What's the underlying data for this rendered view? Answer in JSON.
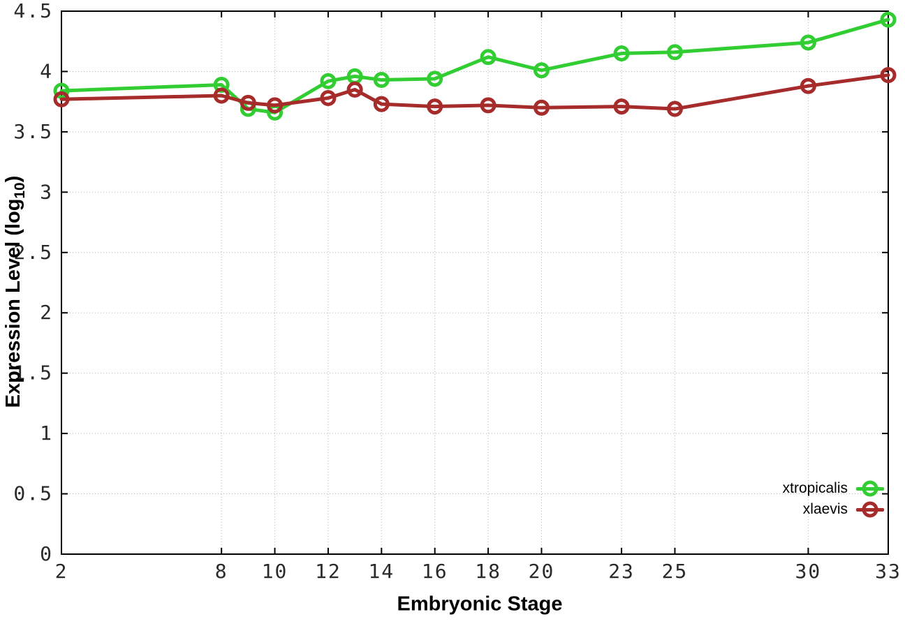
{
  "figure": {
    "xlabel": "Embryonic Stage",
    "ylabel_prefix": "Expression Level (log",
    "ylabel_sub": "10",
    "ylabel_suffix": ")"
  },
  "legend": {
    "position": "bottom-right",
    "entries": [
      {
        "label": "xtropicalis",
        "color": "#32cd32"
      },
      {
        "label": "xlaevis",
        "color": "#a62b2b"
      }
    ]
  },
  "chart_data": {
    "type": "line",
    "title": "",
    "xlabel": "Embryonic Stage",
    "ylabel": "Expression Level (log10)",
    "x": [
      2,
      8,
      9,
      10,
      12,
      13,
      14,
      16,
      18,
      20,
      23,
      25,
      30,
      33
    ],
    "series": [
      {
        "name": "xtropicalis",
        "color": "#32cd32",
        "values": [
          3.84,
          3.89,
          3.69,
          3.66,
          3.92,
          3.96,
          3.93,
          3.94,
          4.12,
          4.01,
          4.15,
          4.16,
          4.24,
          4.43
        ]
      },
      {
        "name": "xlaevis",
        "color": "#a62b2b",
        "values": [
          3.77,
          3.8,
          3.74,
          3.72,
          3.78,
          3.85,
          3.73,
          3.71,
          3.72,
          3.7,
          3.71,
          3.69,
          3.88,
          3.97
        ]
      }
    ],
    "xlim": [
      2,
      33
    ],
    "ylim": [
      0,
      4.5
    ],
    "x_ticks": [
      2,
      8,
      10,
      12,
      14,
      16,
      18,
      20,
      23,
      25,
      30,
      33
    ],
    "y_ticks": [
      0,
      0.5,
      1,
      1.5,
      2,
      2.5,
      3,
      3.5,
      4,
      4.5
    ],
    "grid": true,
    "grid_style": "dotted",
    "legend_position": "bottom-right",
    "marker": "open-circle",
    "border_color": "#000000",
    "grid_color": "#b4b4b4"
  }
}
